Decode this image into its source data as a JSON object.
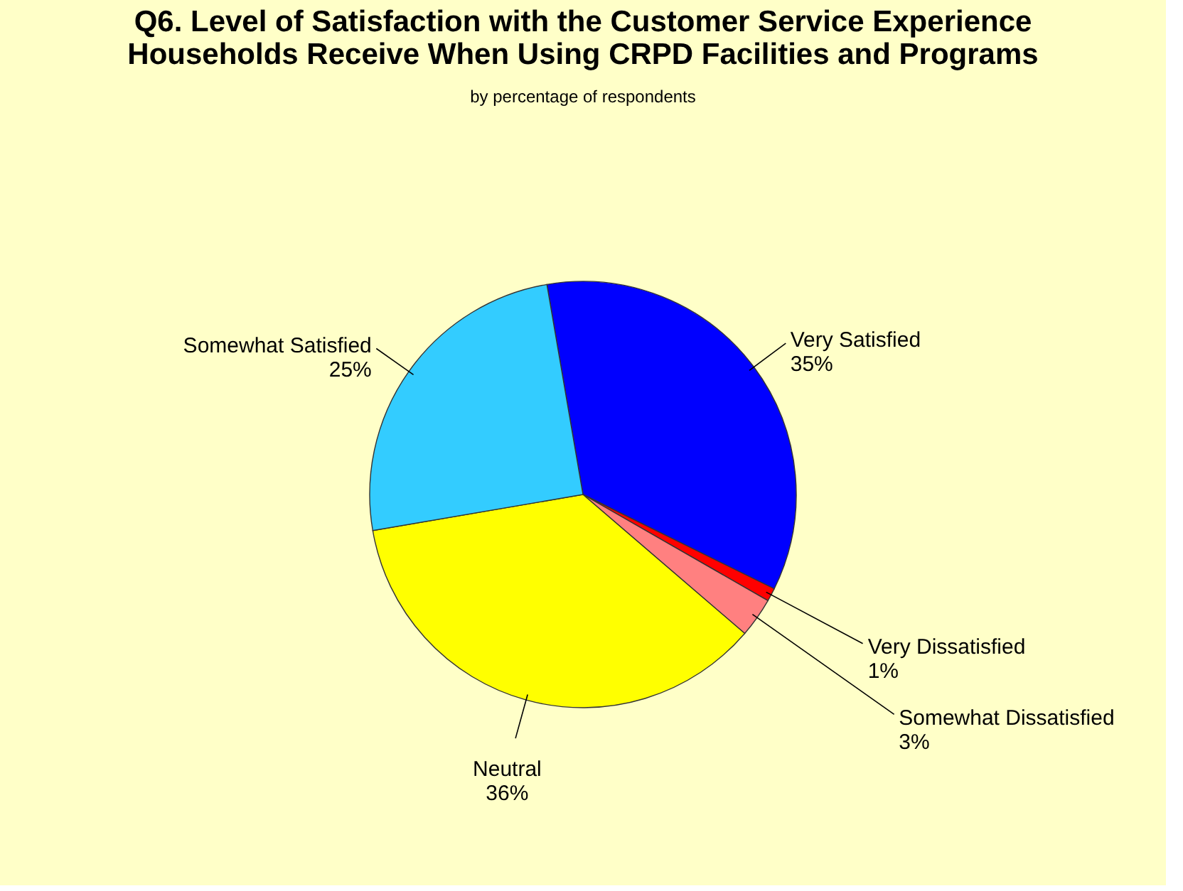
{
  "chart_data": {
    "type": "pie",
    "title": [
      "Q6. Level of Satisfaction with the Customer Service Experience",
      "Households Receive When Using CRPD Facilities and Programs"
    ],
    "subtitle": "by percentage of respondents",
    "categories": [
      "Very Satisfied",
      "Very Dissatisfied",
      "Somewhat Dissatisfied",
      "Neutral",
      "Somewhat Satisfied"
    ],
    "values": [
      35,
      1,
      3,
      36,
      25
    ],
    "value_labels": [
      "35%",
      "1%",
      "3%",
      "36%",
      "25%"
    ],
    "colors": [
      "#0000ff",
      "#ff0000",
      "#ff8080",
      "#ffff00",
      "#33ccff"
    ],
    "legend": false
  }
}
